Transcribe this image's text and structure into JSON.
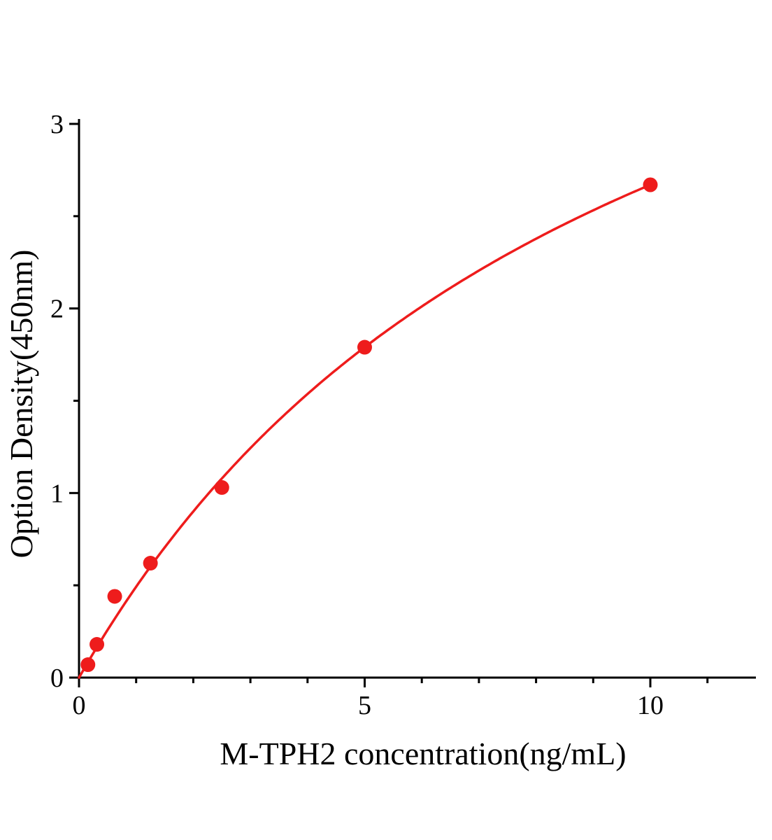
{
  "chart_data": {
    "type": "scatter",
    "title": "",
    "xlabel": "M-TPH2 concentration(ng/mL)",
    "ylabel": "Option Density(450nm)",
    "xlim": [
      0,
      11.85
    ],
    "ylim": [
      0,
      3.03
    ],
    "x": [
      0.156,
      0.3125,
      0.625,
      1.25,
      2.5,
      5,
      10
    ],
    "y": [
      0.07,
      0.18,
      0.44,
      0.62,
      1.03,
      1.79,
      2.67
    ],
    "curve": "smooth saturation fit curve from origin through the data points, ending at (10, 2.67)",
    "x_ticks": {
      "values": [
        0,
        5,
        10
      ],
      "labels": [
        "0",
        "5",
        "10"
      ]
    },
    "y_ticks": {
      "values": [
        0,
        1,
        2,
        3
      ],
      "labels": [
        "0",
        "1",
        "2",
        "3"
      ]
    },
    "x_minor_ticks": [
      1,
      2,
      3,
      4,
      6,
      7,
      8,
      9,
      11
    ],
    "y_minor_ticks": [
      0.5,
      1.5,
      2.5
    ],
    "grid": false,
    "legend": null,
    "colors": {
      "curve": "#ee1c1c",
      "marker": "#ee1c1c",
      "axis": "#000000",
      "background": "#ffffff"
    }
  }
}
